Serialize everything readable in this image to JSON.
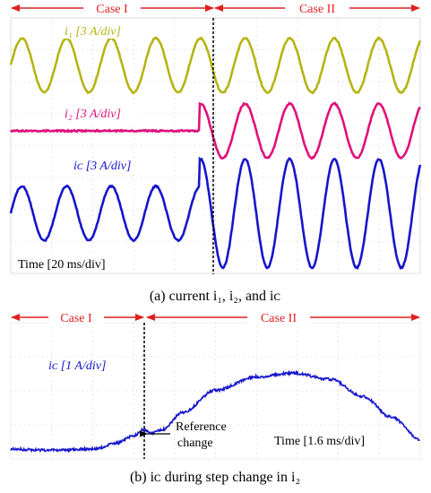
{
  "panel_a": {
    "case1_label": "Case I",
    "case2_label": "Case II",
    "i1_label": "i₁ [3 A/div]",
    "i2_label": "i₂ [3 A/div]",
    "ic_label": "iᴄ [3 A/div]",
    "time_label": "Time [20 ms/div]",
    "caption": "(a)  current i₁, i₂, and iᴄ"
  },
  "panel_b": {
    "case1_label": "Case I",
    "case2_label": "Case II",
    "ic_label": "iᴄ [1 A/div]",
    "ref_line1": "Reference",
    "ref_line2": "change",
    "time_label": "Time [1.6 ms/div]",
    "caption": "(b)  iᴄ during step change in i₂"
  },
  "colors": {
    "i1": "#b5b414",
    "i2": "#e0107a",
    "ic": "#1515cc",
    "case_arrow": "#e02020",
    "grid_dot": "#c8c8c8",
    "frame": "#dddddd"
  },
  "chart_data": [
    {
      "type": "line",
      "panel": "a",
      "x_unit": "div",
      "xlim": [
        0,
        10
      ],
      "event_x_div": 4.6,
      "series": [
        {
          "name": "i1",
          "scale": "3 A/div",
          "freq_div": 1.09,
          "amplitude_div": 0.85,
          "amplitude_after_div": 0.85,
          "offset_div": 0
        },
        {
          "name": "i2",
          "scale": "3 A/div",
          "freq_div": 1.09,
          "amplitude_div": 0.0,
          "amplitude_after_div": 0.85,
          "offset_div": 0
        },
        {
          "name": "ic",
          "scale": "3 A/div",
          "freq_div": 1.09,
          "amplitude_div": 0.85,
          "amplitude_after_div": 1.7,
          "offset_div": 0
        }
      ]
    },
    {
      "type": "line",
      "panel": "b",
      "series_name": "ic",
      "scale": "1 A/div",
      "x_unit": "div",
      "xlim": [
        0,
        10
      ],
      "event_x_div": 3.25,
      "points": [
        [
          0.0,
          1.9
        ],
        [
          1.0,
          1.85
        ],
        [
          2.0,
          1.9
        ],
        [
          2.6,
          2.15
        ],
        [
          3.0,
          2.45
        ],
        [
          3.25,
          2.7
        ],
        [
          3.45,
          2.55
        ],
        [
          3.7,
          2.7
        ],
        [
          4.2,
          3.4
        ],
        [
          5.0,
          4.3
        ],
        [
          6.0,
          4.85
        ],
        [
          6.9,
          5.0
        ],
        [
          7.8,
          4.75
        ],
        [
          8.6,
          4.05
        ],
        [
          9.3,
          3.2
        ],
        [
          10.0,
          2.3
        ]
      ]
    }
  ]
}
